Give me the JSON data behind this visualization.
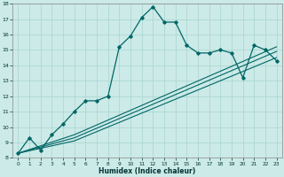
{
  "xlabel": "Humidex (Indice chaleur)",
  "xlim": [
    -0.5,
    23.5
  ],
  "ylim": [
    8,
    18
  ],
  "bg_color": "#cceae7",
  "grid_color": "#a8d5d1",
  "line_color": "#006666",
  "line1_x": [
    0,
    1,
    2,
    3,
    4,
    5,
    6,
    7,
    8,
    9,
    10,
    11,
    12,
    13,
    14,
    15,
    16,
    17,
    18,
    19,
    20,
    21,
    22,
    23
  ],
  "line1_y": [
    8.3,
    9.3,
    8.5,
    9.5,
    10.2,
    11.0,
    11.7,
    11.7,
    12.0,
    15.2,
    15.9,
    17.1,
    17.8,
    16.8,
    16.8,
    15.3,
    14.8,
    14.8,
    15.0,
    14.8,
    13.2,
    15.3,
    15.0,
    14.3
  ],
  "line2_x": [
    0,
    5,
    23
  ],
  "line2_y": [
    8.3,
    9.1,
    14.5
  ],
  "line3_x": [
    0,
    5,
    23
  ],
  "line3_y": [
    8.3,
    9.3,
    14.9
  ],
  "line4_x": [
    0,
    5,
    23
  ],
  "line4_y": [
    8.3,
    9.5,
    15.2
  ],
  "xtick_labels": [
    "0",
    "1",
    "2",
    "3",
    "4",
    "5",
    "6",
    "7",
    "8",
    "9",
    "10",
    "11",
    "12",
    "13",
    "14",
    "15",
    "16",
    "17",
    "18",
    "19",
    "20",
    "21",
    "22",
    "23"
  ],
  "ytick_vals": [
    8,
    9,
    10,
    11,
    12,
    13,
    14,
    15,
    16,
    17,
    18
  ]
}
